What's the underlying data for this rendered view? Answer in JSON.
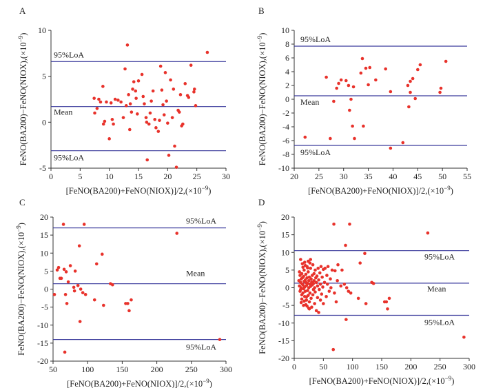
{
  "colors": {
    "point": "#e8322b",
    "reference_line": "#3a3a9c",
    "axis": "#333333"
  },
  "chart_data": [
    {
      "panel": "A",
      "type": "scatter",
      "xlabel_prefix": "[FeNO(BA200)+FeNO(NIOX)]/2,(",
      "ylabel_prefix": "FeNO(BA200)−FeNO(NIOX),(",
      "unit_text": "×10",
      "unit_exponent": "−9",
      "unit_close": ")",
      "xlim": [
        0,
        30
      ],
      "ylim": [
        -5,
        10
      ],
      "xticks": [
        0,
        5,
        10,
        15,
        20,
        25,
        30
      ],
      "yticks": [
        -5,
        0,
        5,
        10
      ],
      "lines": [
        {
          "label": "95%LoA",
          "y": 6.6
        },
        {
          "label": "Mean",
          "y": 1.7
        },
        {
          "label": "95%LoA",
          "y": -3.1
        }
      ],
      "points": [
        [
          7.4,
          2.6
        ],
        [
          7.5,
          1.0
        ],
        [
          7.9,
          1.5
        ],
        [
          8.2,
          2.5
        ],
        [
          8.5,
          2.2
        ],
        [
          8.9,
          3.9
        ],
        [
          9.0,
          -0.2
        ],
        [
          9.2,
          0.1
        ],
        [
          9.5,
          2.2
        ],
        [
          10.0,
          -1.8
        ],
        [
          10.3,
          2.1
        ],
        [
          10.5,
          0.3
        ],
        [
          10.7,
          -0.2
        ],
        [
          11.0,
          2.5
        ],
        [
          11.5,
          2.4
        ],
        [
          12.0,
          2.2
        ],
        [
          12.4,
          0.5
        ],
        [
          12.7,
          5.8
        ],
        [
          12.9,
          1.8
        ],
        [
          13.1,
          8.4
        ],
        [
          13.3,
          3.0
        ],
        [
          13.5,
          -0.8
        ],
        [
          13.6,
          2.0
        ],
        [
          13.8,
          1.1
        ],
        [
          14.0,
          3.6
        ],
        [
          14.2,
          4.4
        ],
        [
          14.5,
          3.4
        ],
        [
          14.6,
          2.6
        ],
        [
          14.8,
          0.9
        ],
        [
          15.0,
          4.5
        ],
        [
          15.6,
          5.2
        ],
        [
          15.8,
          2.8
        ],
        [
          16.0,
          2.0
        ],
        [
          16.3,
          0.5
        ],
        [
          16.4,
          0.0
        ],
        [
          16.5,
          -4.1
        ],
        [
          16.8,
          -0.2
        ],
        [
          17.0,
          1.0
        ],
        [
          17.2,
          2.3
        ],
        [
          17.5,
          3.4
        ],
        [
          17.8,
          0.3
        ],
        [
          18.0,
          -0.6
        ],
        [
          18.4,
          -1.0
        ],
        [
          18.6,
          0.2
        ],
        [
          18.8,
          6.1
        ],
        [
          19.0,
          3.5
        ],
        [
          19.2,
          1.9
        ],
        [
          19.4,
          0.8
        ],
        [
          19.6,
          5.4
        ],
        [
          19.8,
          2.3
        ],
        [
          20.0,
          -0.1
        ],
        [
          20.2,
          -3.6
        ],
        [
          20.5,
          4.6
        ],
        [
          20.8,
          0.5
        ],
        [
          21.0,
          3.6
        ],
        [
          21.2,
          -2.6
        ],
        [
          21.5,
          -4.9
        ],
        [
          21.8,
          1.3
        ],
        [
          22.0,
          1.1
        ],
        [
          22.2,
          3.0
        ],
        [
          22.4,
          -0.4
        ],
        [
          22.6,
          -0.2
        ],
        [
          23.0,
          4.2
        ],
        [
          23.4,
          2.9
        ],
        [
          23.6,
          2.7
        ],
        [
          24.0,
          6.2
        ],
        [
          24.5,
          3.3
        ],
        [
          24.6,
          3.6
        ],
        [
          24.8,
          1.8
        ],
        [
          26.8,
          7.6
        ]
      ]
    },
    {
      "panel": "B",
      "type": "scatter",
      "xlabel_prefix": "[FeNO(BA200)+FeNO(NIOX)]/2,(",
      "ylabel_prefix": "FeNO(BA200)−FeNO(NIOX),(",
      "unit_text": "×10",
      "unit_exponent": "−9",
      "unit_close": ")",
      "xlim": [
        20,
        55
      ],
      "ylim": [
        -10,
        10
      ],
      "xticks": [
        20,
        25,
        30,
        35,
        40,
        45,
        50,
        55
      ],
      "yticks": [
        -10,
        -8,
        -6,
        -4,
        -2,
        0,
        2,
        4,
        6,
        8,
        10
      ],
      "lines": [
        {
          "label": "95%LoA",
          "y": 7.7
        },
        {
          "label": "Mean",
          "y": 0.5
        },
        {
          "label": "95%LoA",
          "y": -6.7
        }
      ],
      "points": [
        [
          22.2,
          -5.5
        ],
        [
          26.5,
          3.2
        ],
        [
          27.3,
          -5.7
        ],
        [
          28.0,
          -0.3
        ],
        [
          28.6,
          1.6
        ],
        [
          29.0,
          2.3
        ],
        [
          29.5,
          2.8
        ],
        [
          30.5,
          2.7
        ],
        [
          31.0,
          2.0
        ],
        [
          31.2,
          -1.6
        ],
        [
          31.5,
          0.0
        ],
        [
          31.8,
          -3.9
        ],
        [
          32.0,
          1.8
        ],
        [
          32.2,
          -5.7
        ],
        [
          33.5,
          3.8
        ],
        [
          33.8,
          5.9
        ],
        [
          34.0,
          -3.9
        ],
        [
          34.5,
          4.5
        ],
        [
          35.0,
          2.1
        ],
        [
          35.3,
          4.6
        ],
        [
          36.5,
          2.8
        ],
        [
          38.5,
          4.4
        ],
        [
          39.5,
          -7.1
        ],
        [
          39.5,
          1.1
        ],
        [
          42.0,
          -6.3
        ],
        [
          43.0,
          2.0
        ],
        [
          43.5,
          2.6
        ],
        [
          43.2,
          -1.1
        ],
        [
          43.5,
          1.0
        ],
        [
          44.0,
          3.0
        ],
        [
          44.5,
          0.1
        ],
        [
          45.0,
          4.3
        ],
        [
          45.5,
          5.0
        ],
        [
          49.5,
          1.0
        ],
        [
          49.7,
          1.6
        ],
        [
          50.7,
          5.5
        ]
      ]
    },
    {
      "panel": "C",
      "type": "scatter",
      "xlabel_prefix": "[FeNO(BA200)+FeNO(NIOX)]/2,(",
      "ylabel_prefix": "FeNO(BA200)−FeNO(NIOX),(",
      "unit_text": "×10",
      "unit_exponent": "−9",
      "unit_close": ")",
      "xlim": [
        50,
        300
      ],
      "ylim": [
        -20,
        20
      ],
      "xticks": [
        50,
        100,
        150,
        200,
        250,
        300
      ],
      "yticks": [
        -20,
        -15,
        -10,
        -5,
        0,
        5,
        10,
        15,
        20
      ],
      "lines": [
        {
          "label": "95%LoA",
          "y": 17.0
        },
        {
          "label": "Mean",
          "y": 1.5
        },
        {
          "label": "95%LoA",
          "y": -14.0
        }
      ],
      "points": [
        [
          52,
          -1.5
        ],
        [
          56,
          5.3
        ],
        [
          58,
          6.0
        ],
        [
          60,
          3.0
        ],
        [
          62,
          3.0
        ],
        [
          65,
          18.0
        ],
        [
          66,
          5.5
        ],
        [
          67,
          -17.5
        ],
        [
          68,
          -1.5
        ],
        [
          69,
          4.8
        ],
        [
          70,
          -4.0
        ],
        [
          72,
          2.0
        ],
        [
          75,
          6.5
        ],
        [
          80,
          0.5
        ],
        [
          81,
          -0.5
        ],
        [
          82,
          5.0
        ],
        [
          86,
          1.0
        ],
        [
          88,
          12.0
        ],
        [
          89,
          -9.0
        ],
        [
          90,
          0.0
        ],
        [
          93,
          -1.0
        ],
        [
          95,
          18.0
        ],
        [
          97,
          -1.5
        ],
        [
          110,
          -3.0
        ],
        [
          113,
          7.0
        ],
        [
          121,
          9.7
        ],
        [
          123,
          -4.5
        ],
        [
          133,
          1.5
        ],
        [
          136,
          1.2
        ],
        [
          155,
          -4.0
        ],
        [
          158,
          -4.0
        ],
        [
          160,
          -6.0
        ],
        [
          163,
          -3.0
        ],
        [
          229,
          15.5
        ],
        [
          291,
          -14.0
        ]
      ]
    },
    {
      "panel": "D",
      "type": "scatter",
      "xlabel_prefix": "[FeNO(BA200)+FeNO(NIOX)]/2,(",
      "ylabel_prefix": "FeNO(BA200)−FeNO(NIOX),(",
      "unit_text": "×10",
      "unit_exponent": "−9",
      "unit_close": ")",
      "xlim": [
        0,
        300
      ],
      "ylim": [
        -20,
        20
      ],
      "xticks": [
        0,
        50,
        100,
        150,
        200,
        250,
        300
      ],
      "yticks": [
        -20,
        -15,
        -10,
        -5,
        0,
        5,
        10,
        15,
        20
      ],
      "lines": [
        {
          "label": "95%LoA",
          "y": 10.5
        },
        {
          "label": "Mean",
          "y": 1.3
        },
        {
          "label": "95%LoA",
          "y": -7.8
        }
      ],
      "points": [
        [
          8,
          2.0
        ],
        [
          9,
          0.5
        ],
        [
          10,
          -1.0
        ],
        [
          10,
          3.5
        ],
        [
          11,
          1.5
        ],
        [
          11,
          -0.5
        ],
        [
          12,
          2.5
        ],
        [
          12,
          0.0
        ],
        [
          13,
          4.0
        ],
        [
          13,
          -2.0
        ],
        [
          14,
          1.0
        ],
        [
          14,
          2.8
        ],
        [
          15,
          -1.5
        ],
        [
          15,
          0.8
        ],
        [
          16,
          3.2
        ],
        [
          16,
          -0.3
        ],
        [
          17,
          1.8
        ],
        [
          17,
          5.0
        ],
        [
          18,
          -2.5
        ],
        [
          18,
          0.2
        ],
        [
          19,
          2.2
        ],
        [
          19,
          -1.0
        ],
        [
          20,
          1.5
        ],
        [
          20,
          3.8
        ],
        [
          21,
          -3.5
        ],
        [
          21,
          0.6
        ],
        [
          22,
          2.8
        ],
        [
          22,
          6.0
        ],
        [
          23,
          -0.8
        ],
        [
          23,
          1.2
        ],
        [
          24,
          4.5
        ],
        [
          24,
          -2.2
        ],
        [
          25,
          0.0
        ],
        [
          25,
          2.0
        ],
        [
          26,
          -4.0
        ],
        [
          26,
          3.0
        ],
        [
          27,
          1.0
        ],
        [
          27,
          -1.5
        ],
        [
          28,
          5.5
        ],
        [
          28,
          0.4
        ],
        [
          29,
          2.5
        ],
        [
          29,
          -3.0
        ],
        [
          30,
          1.6
        ],
        [
          30,
          -5.5
        ],
        [
          31,
          3.5
        ],
        [
          31,
          0.8
        ],
        [
          32,
          -2.0
        ],
        [
          32,
          6.5
        ],
        [
          33,
          1.2
        ],
        [
          33,
          -0.5
        ],
        [
          34,
          4.0
        ],
        [
          34,
          2.0
        ],
        [
          35,
          -4.5
        ],
        [
          35,
          0.0
        ],
        [
          36,
          5.0
        ],
        [
          36,
          -1.2
        ],
        [
          37,
          2.8
        ],
        [
          38,
          -6.5
        ],
        [
          38,
          1.5
        ],
        [
          39,
          3.3
        ],
        [
          40,
          -2.8
        ],
        [
          40,
          0.5
        ],
        [
          41,
          5.5
        ],
        [
          42,
          -7.0
        ],
        [
          42,
          2.2
        ],
        [
          43,
          -0.5
        ],
        [
          44,
          4.2
        ],
        [
          45,
          -3.5
        ],
        [
          45,
          1.0
        ],
        [
          46,
          6.0
        ],
        [
          47,
          -1.8
        ],
        [
          48,
          3.0
        ],
        [
          49,
          0.2
        ],
        [
          50,
          5.2
        ],
        [
          50,
          -4.5
        ],
        [
          52,
          1.5
        ],
        [
          53,
          5.5
        ],
        [
          55,
          -2.5
        ],
        [
          56,
          3.5
        ],
        [
          57,
          1.0
        ],
        [
          58,
          6.0
        ],
        [
          60,
          -1.0
        ],
        [
          62,
          2.5
        ],
        [
          63,
          0.0
        ],
        [
          65,
          5.0
        ],
        [
          67,
          -17.5
        ],
        [
          68,
          18.0
        ],
        [
          69,
          -1.5
        ],
        [
          70,
          4.8
        ],
        [
          72,
          -4.0
        ],
        [
          74,
          2.0
        ],
        [
          75,
          6.5
        ],
        [
          80,
          0.5
        ],
        [
          82,
          5.0
        ],
        [
          86,
          1.0
        ],
        [
          88,
          12.0
        ],
        [
          89,
          -9.0
        ],
        [
          90,
          0.0
        ],
        [
          93,
          -1.0
        ],
        [
          95,
          18.0
        ],
        [
          97,
          -1.5
        ],
        [
          110,
          -3.0
        ],
        [
          113,
          7.0
        ],
        [
          121,
          9.7
        ],
        [
          123,
          -4.5
        ],
        [
          133,
          1.5
        ],
        [
          136,
          1.2
        ],
        [
          155,
          -4.0
        ],
        [
          158,
          -4.0
        ],
        [
          160,
          -6.0
        ],
        [
          163,
          -3.0
        ],
        [
          229,
          15.5
        ],
        [
          291,
          -14.0
        ],
        [
          9,
          4.5
        ],
        [
          11,
          8.0
        ],
        [
          12,
          -4.2
        ],
        [
          14,
          6.8
        ],
        [
          16,
          -5.0
        ],
        [
          18,
          7.2
        ],
        [
          20,
          -4.8
        ],
        [
          22,
          -5.2
        ],
        [
          24,
          7.5
        ],
        [
          26,
          -6.0
        ],
        [
          28,
          8.0
        ],
        [
          13,
          -3.2
        ],
        [
          15,
          5.8
        ],
        [
          17,
          -3.8
        ],
        [
          19,
          6.3
        ],
        [
          21,
          -2.6
        ],
        [
          23,
          5.6
        ],
        [
          25,
          -5.8
        ],
        [
          27,
          7.0
        ]
      ]
    }
  ]
}
